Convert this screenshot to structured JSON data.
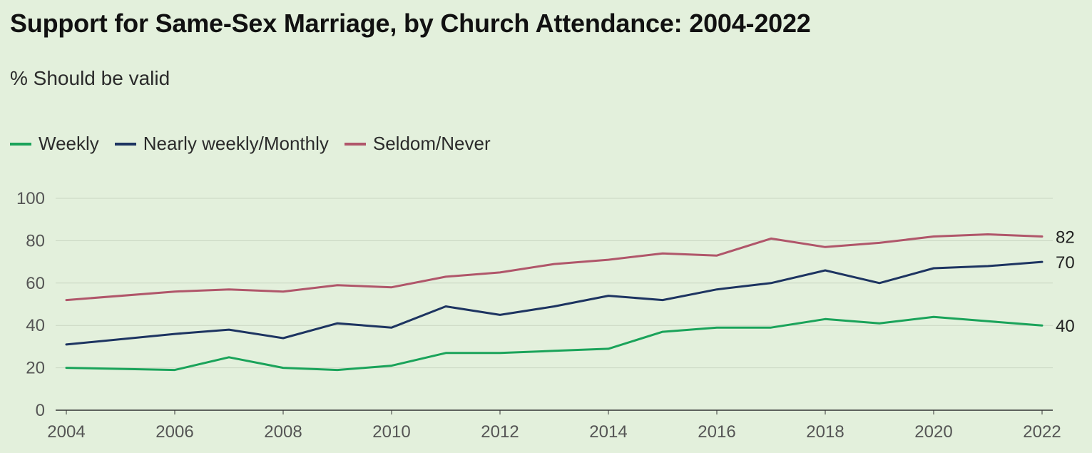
{
  "chart_data": {
    "type": "line",
    "title": "Support for Same-Sex Marriage, by Church Attendance: 2004-2022",
    "subtitle": "% Should be valid",
    "x": [
      2004,
      2005,
      2006,
      2007,
      2008,
      2009,
      2010,
      2011,
      2012,
      2013,
      2014,
      2015,
      2016,
      2017,
      2018,
      2019,
      2020,
      2021,
      2022
    ],
    "x_ticks": [
      "2004",
      "2006",
      "2008",
      "2010",
      "2012",
      "2014",
      "2016",
      "2018",
      "2020",
      "2022"
    ],
    "y_ticks": [
      "0",
      "20",
      "40",
      "60",
      "80",
      "100"
    ],
    "ylim": [
      0,
      100
    ],
    "grid": true,
    "legend_position": "top-left",
    "series": [
      {
        "name": "Weekly",
        "color": "#1aa35a",
        "values": [
          20,
          null,
          19,
          25,
          20,
          19,
          21,
          27,
          27,
          28,
          29,
          37,
          39,
          39,
          43,
          41,
          44,
          42,
          40
        ],
        "end_label": "40"
      },
      {
        "name": "Nearly weekly/Monthly",
        "color": "#1d3461",
        "values": [
          31,
          null,
          36,
          38,
          34,
          41,
          39,
          49,
          45,
          49,
          54,
          52,
          57,
          60,
          66,
          60,
          67,
          68,
          70
        ],
        "end_label": "70"
      },
      {
        "name": "Seldom/Never",
        "color": "#b0566a",
        "values": [
          52,
          null,
          56,
          57,
          56,
          59,
          58,
          63,
          65,
          69,
          71,
          74,
          73,
          81,
          77,
          79,
          82,
          83,
          82
        ],
        "end_label": "82"
      }
    ]
  }
}
